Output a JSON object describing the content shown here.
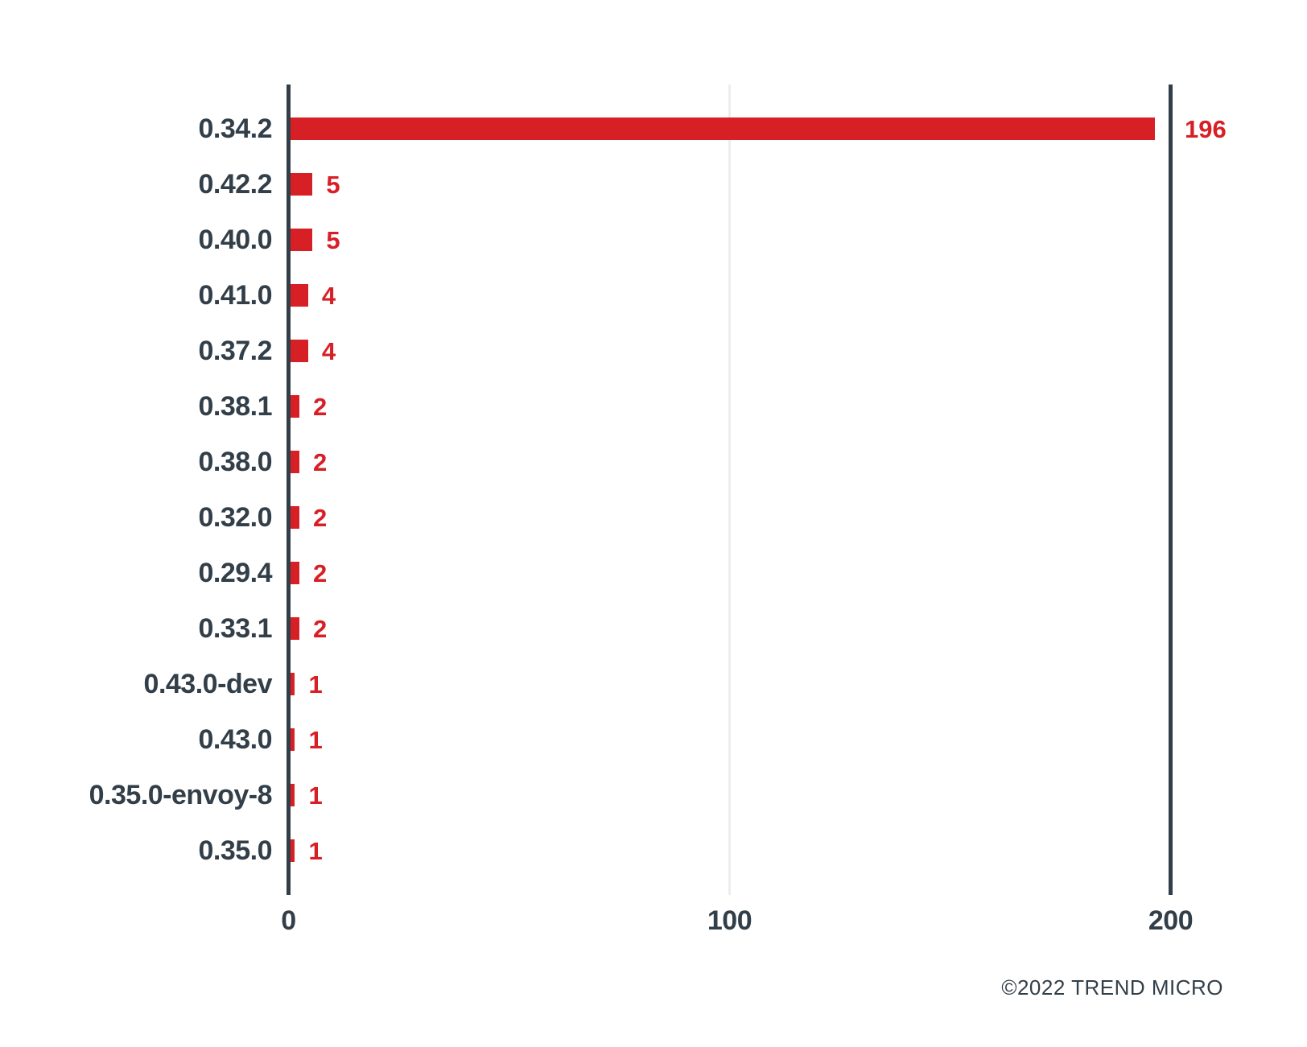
{
  "chart_data": {
    "type": "bar",
    "orientation": "horizontal",
    "title": "",
    "xlabel": "",
    "ylabel": "",
    "categories": [
      "0.34.2",
      "0.42.2",
      "0.40.0",
      "0.41.0",
      "0.37.2",
      "0.38.1",
      "0.38.0",
      "0.32.0",
      "0.29.4",
      "0.33.1",
      "0.43.0-dev",
      "0.43.0",
      "0.35.0-envoy-8",
      "0.35.0"
    ],
    "values": [
      196,
      5,
      5,
      4,
      4,
      2,
      2,
      2,
      2,
      2,
      1,
      1,
      1,
      1
    ],
    "value_labels": [
      "196",
      "5",
      "5",
      "4",
      "4",
      "2",
      "2",
      "2",
      "2",
      "2",
      "1",
      "1",
      "1",
      "1"
    ],
    "xlim": [
      0,
      200
    ],
    "x_ticks": [
      0,
      100,
      200
    ],
    "x_tick_labels": [
      "0",
      "100",
      "200"
    ],
    "legend_position": "none",
    "grid": "vertical gridline at 100; dark frame lines at 0 and 200",
    "colors": {
      "bar": "#D71F26",
      "value_label": "#D71F26",
      "axis_line": "#323E48",
      "gridline": "#EDEDED",
      "category_label": "#323E48",
      "tick_label": "#323E48",
      "footer_text": "#323E48",
      "background": "#FFFFFF"
    }
  },
  "footer": {
    "copyright": "©2022 TREND MICRO"
  }
}
